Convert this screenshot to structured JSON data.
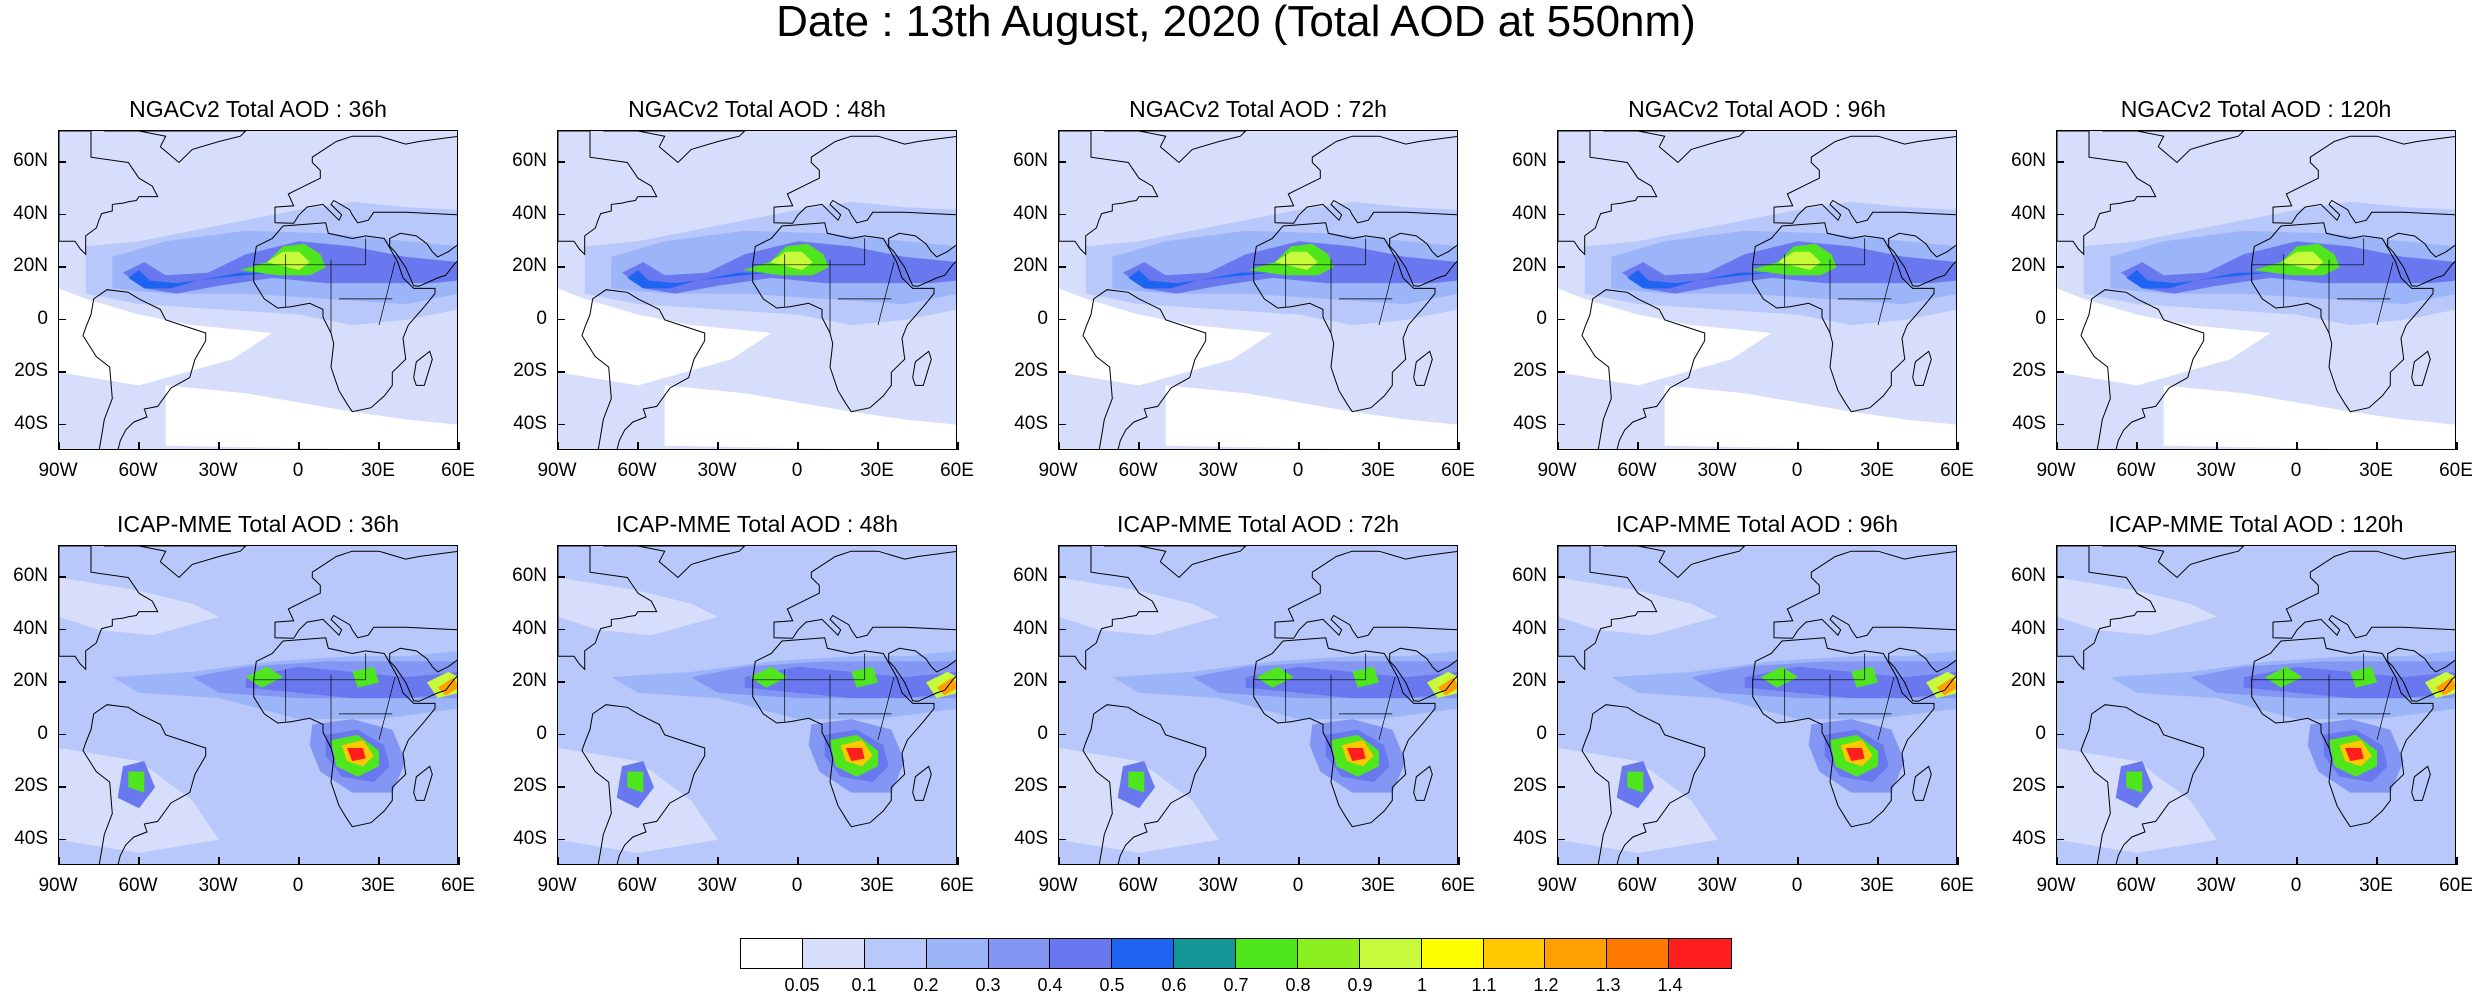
{
  "title": "Date : 13th August, 2020 (Total AOD at 550nm)",
  "panels": [
    {
      "row": 0,
      "title": "NGACv2 Total AOD : 36h",
      "model": "NGACv2",
      "lead_h": 36
    },
    {
      "row": 0,
      "title": "NGACv2 Total AOD : 48h",
      "model": "NGACv2",
      "lead_h": 48
    },
    {
      "row": 0,
      "title": "NGACv2 Total AOD : 72h",
      "model": "NGACv2",
      "lead_h": 72
    },
    {
      "row": 0,
      "title": "NGACv2 Total AOD : 96h",
      "model": "NGACv2",
      "lead_h": 96
    },
    {
      "row": 0,
      "title": "NGACv2 Total AOD : 120h",
      "model": "NGACv2",
      "lead_h": 120
    },
    {
      "row": 1,
      "title": "ICAP-MME Total AOD : 36h",
      "model": "ICAP-MME",
      "lead_h": 36
    },
    {
      "row": 1,
      "title": "ICAP-MME Total AOD : 48h",
      "model": "ICAP-MME",
      "lead_h": 48
    },
    {
      "row": 1,
      "title": "ICAP-MME Total AOD : 72h",
      "model": "ICAP-MME",
      "lead_h": 72
    },
    {
      "row": 1,
      "title": "ICAP-MME Total AOD : 96h",
      "model": "ICAP-MME",
      "lead_h": 96
    },
    {
      "row": 1,
      "title": "ICAP-MME Total AOD : 120h",
      "model": "ICAP-MME",
      "lead_h": 120
    }
  ],
  "lat_labels": [
    "60N",
    "40N",
    "20N",
    "0",
    "20S",
    "40S"
  ],
  "lat_values": [
    60,
    40,
    20,
    0,
    -20,
    -40
  ],
  "lon_labels": [
    "90W",
    "60W",
    "30W",
    "0",
    "30E",
    "60E"
  ],
  "lon_values": [
    -90,
    -60,
    -30,
    0,
    30,
    60
  ],
  "extent": {
    "lon": [
      -90,
      60
    ],
    "lat": [
      -50,
      72
    ]
  },
  "colorbar": {
    "labels": [
      "0.05",
      "0.1",
      "0.2",
      "0.3",
      "0.4",
      "0.5",
      "0.6",
      "0.7",
      "0.8",
      "0.9",
      "1",
      "1.1",
      "1.2",
      "1.3",
      "1.4"
    ],
    "colors": [
      "#ffffff",
      "#d6defc",
      "#b8c8fa",
      "#9cb4f8",
      "#8496f4",
      "#6a78ef",
      "#1e64f0",
      "#149696",
      "#50e61e",
      "#8cf01e",
      "#c8fa3c",
      "#ffff00",
      "#ffc800",
      "#ffa000",
      "#ff7800",
      "#ff1e1e"
    ]
  }
}
